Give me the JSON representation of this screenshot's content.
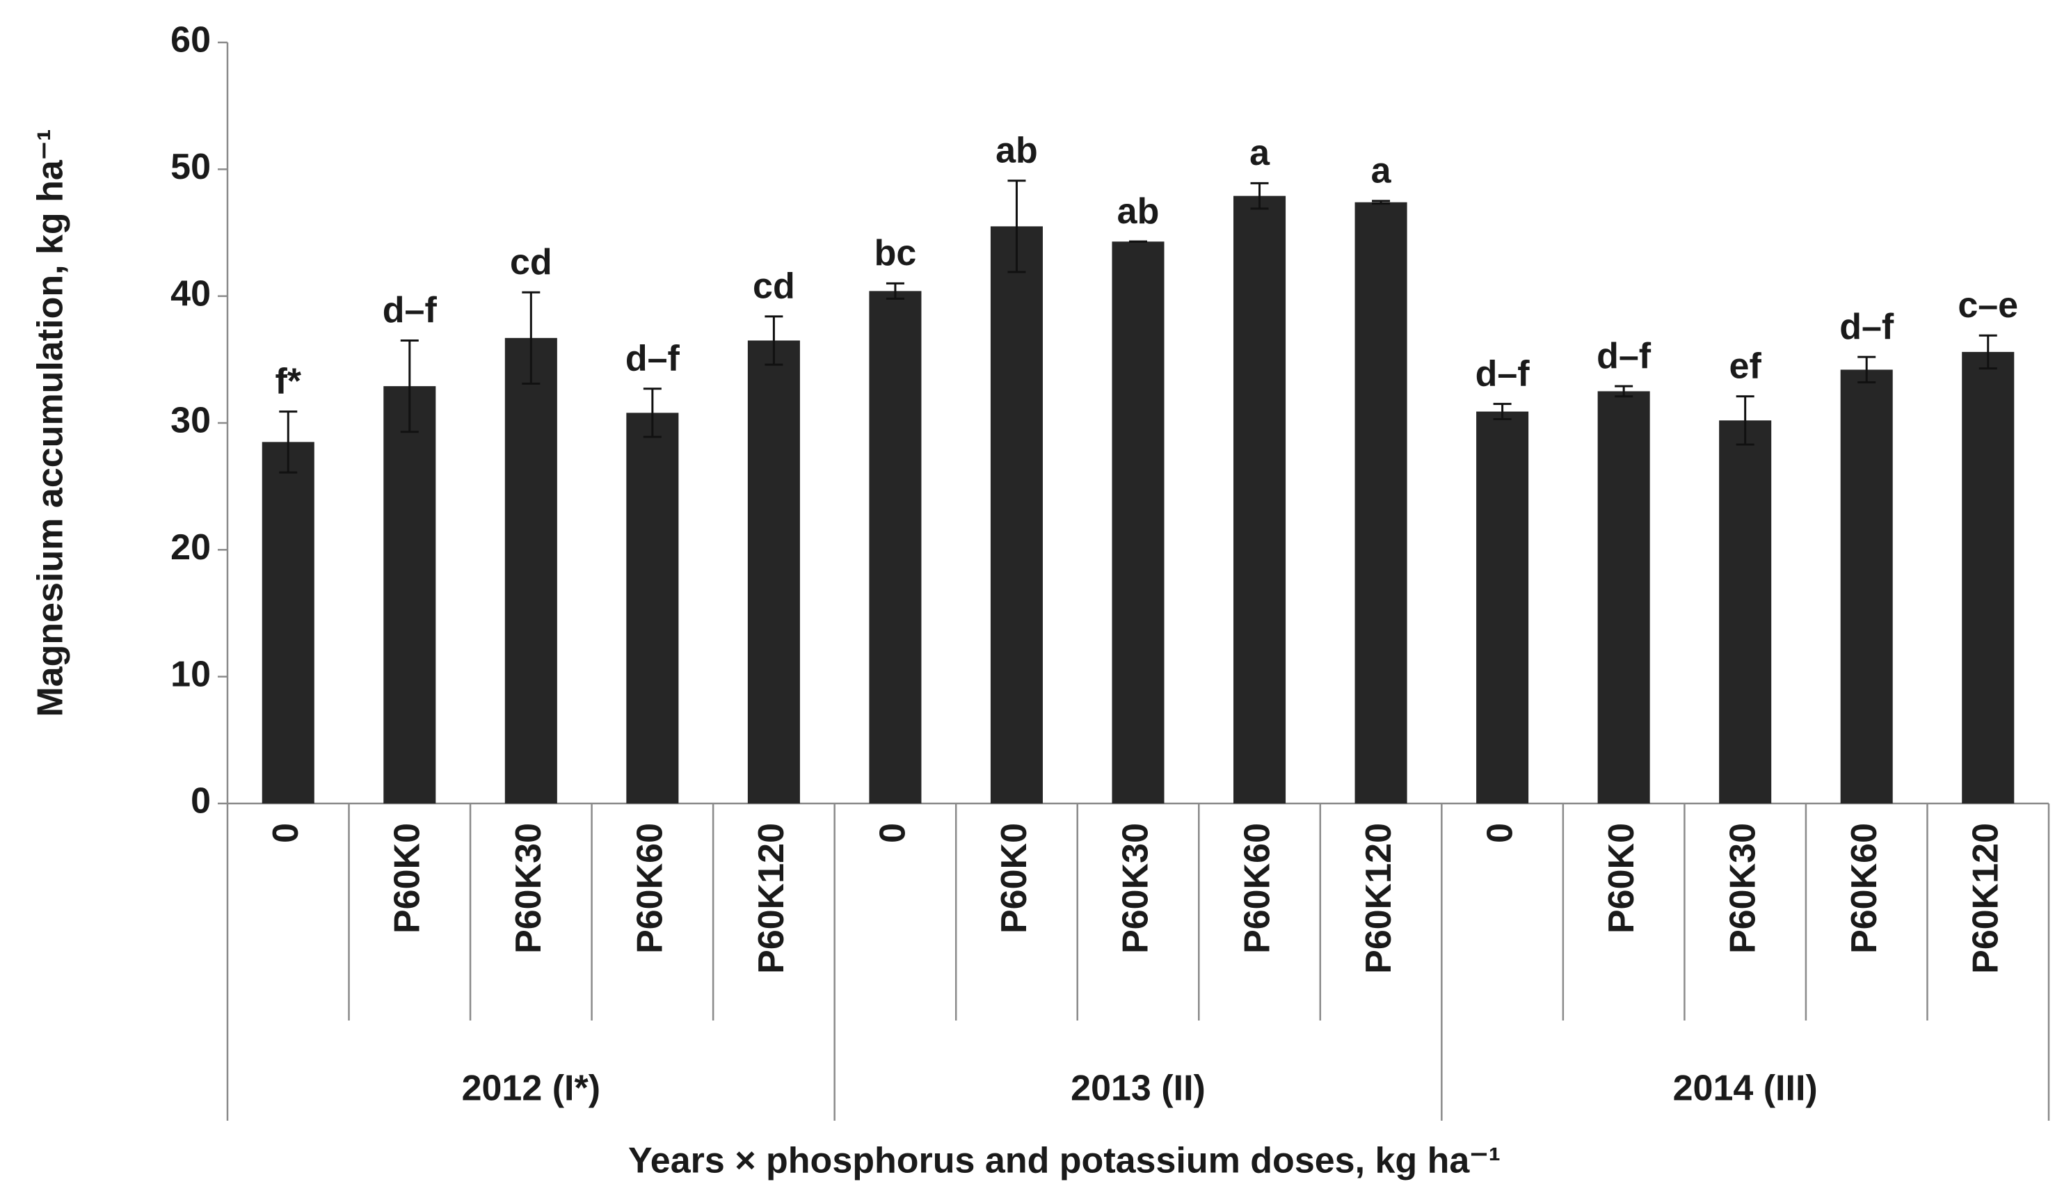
{
  "chart_data": {
    "type": "bar",
    "y_label": "Magnesium accumulation, kg ha⁻¹",
    "x_label": "Years × phosphorus and potassium doses, kg ha⁻¹",
    "group_labels": [
      "2012 (I*)",
      "2013 (II)",
      "2014 (III)"
    ],
    "categories": [
      "0",
      "P60K0",
      "P60K30",
      "P60K60",
      "P60K120",
      "0",
      "P60K0",
      "P60K30",
      "P60K60",
      "P60K120",
      "0",
      "P60K0",
      "P60K30",
      "P60K60",
      "P60K120"
    ],
    "values": [
      28.5,
      32.9,
      36.7,
      30.8,
      36.5,
      40.4,
      45.5,
      44.3,
      47.9,
      47.4,
      30.9,
      32.5,
      30.2,
      34.2,
      35.6
    ],
    "errors": [
      2.4,
      3.6,
      3.6,
      1.9,
      1.9,
      0.6,
      3.6,
      0,
      1.0,
      0.1,
      0.6,
      0.4,
      1.9,
      1.0,
      1.3
    ],
    "annotations": [
      "f*",
      "d–f",
      "cd",
      "d–f",
      "cd",
      "bc",
      "ab",
      "ab",
      "a",
      "a",
      "d–f",
      "d–f",
      "ef",
      "d–f",
      "c–e"
    ],
    "color": "#262626",
    "ylim": [
      0,
      60
    ],
    "yticks": [
      0,
      10,
      20,
      30,
      40,
      50,
      60
    ]
  }
}
